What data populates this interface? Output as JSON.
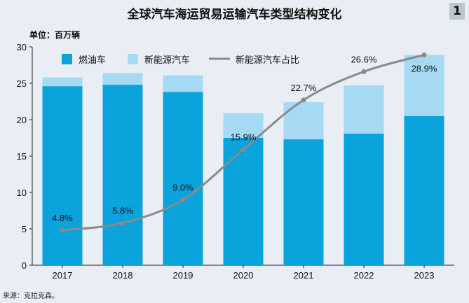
{
  "header": {
    "title": "全球汽车海运贸易运输汽车类型结构变化",
    "badge": "1",
    "unit_label": "单位：百万辆"
  },
  "footer": {
    "source": "来源：克拉克森。"
  },
  "colors": {
    "background": "#e9eef4",
    "fuel": "#0aa3dc",
    "nev": "#a6daf4",
    "share_line": "#8a8a8a"
  },
  "chart_data": {
    "type": "bar",
    "stacked": true,
    "categories": [
      "2017",
      "2018",
      "2019",
      "2020",
      "2021",
      "2022",
      "2023"
    ],
    "ylim": [
      0,
      30
    ],
    "yticks": [
      0,
      5,
      10,
      15,
      20,
      25,
      30
    ],
    "grid": false,
    "legend_position": "top-left",
    "series": [
      {
        "name": "燃油车",
        "values": [
          24.6,
          24.8,
          23.8,
          17.5,
          17.3,
          18.1,
          20.5
        ]
      },
      {
        "name": "新能源汽车",
        "values": [
          1.2,
          1.6,
          2.3,
          3.4,
          5.1,
          6.6,
          8.4
        ]
      }
    ],
    "line_series": {
      "name": "新能源汽车占比",
      "values": [
        4.8,
        5.8,
        9.0,
        15.9,
        22.7,
        26.6,
        28.9
      ],
      "labels": [
        "4.8%",
        "5.8%",
        "9.0%",
        "15.9%",
        "22.7%",
        "26.6%",
        "28.9%"
      ]
    }
  }
}
